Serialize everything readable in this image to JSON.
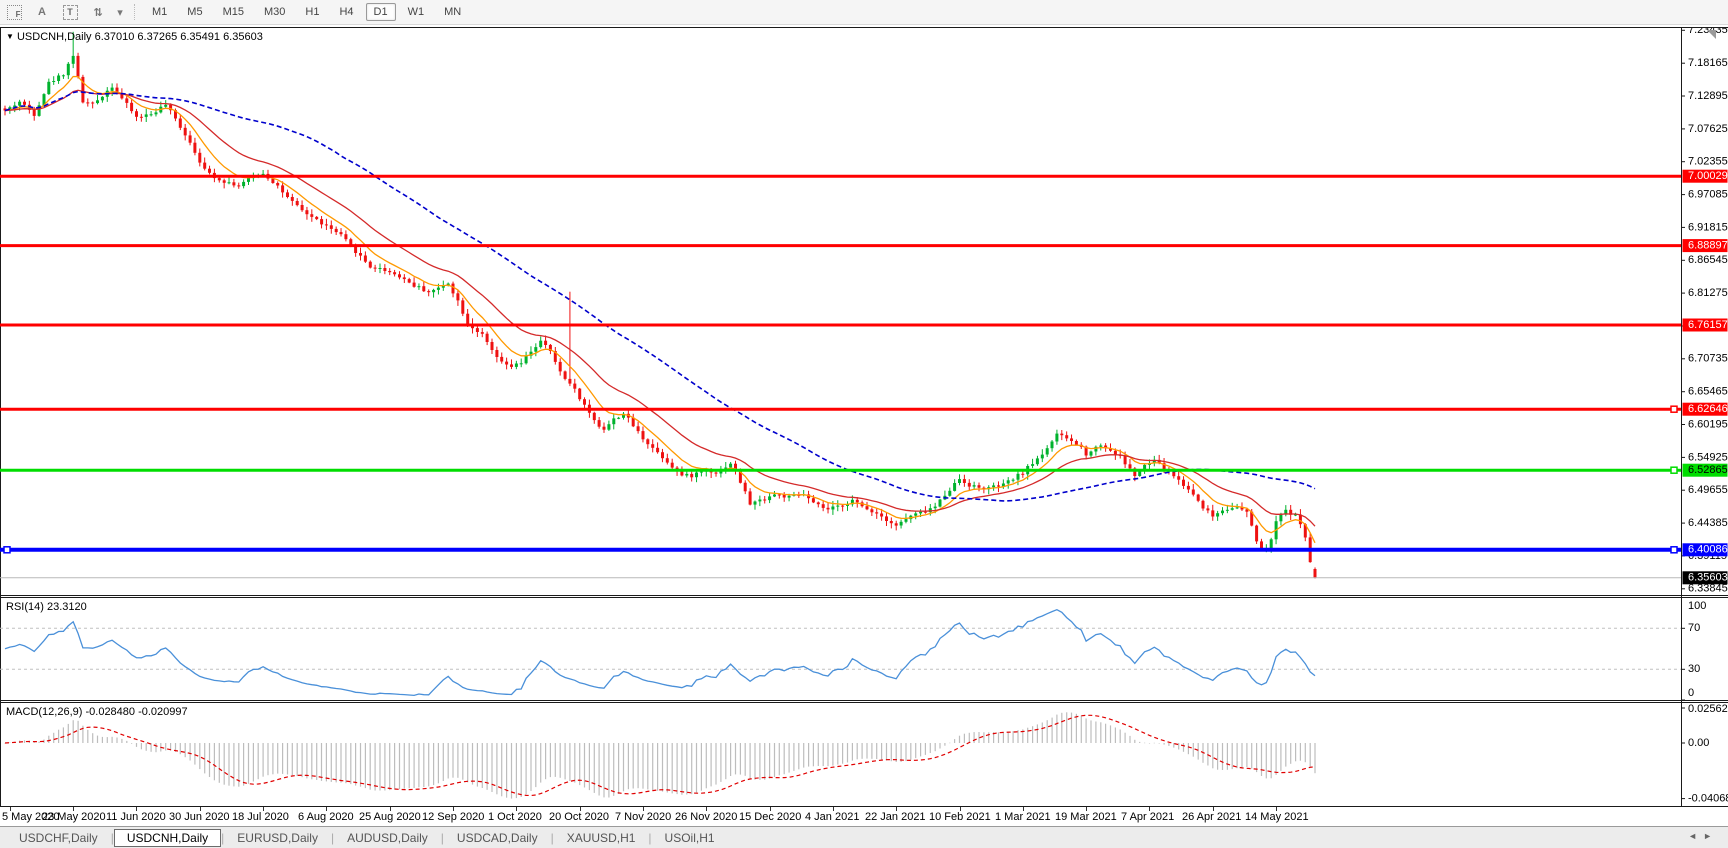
{
  "toolbar": {
    "icons": {
      "grid_f": "F",
      "letter_a": "A",
      "text_box": "T",
      "style_arrows": "⇅",
      "caret": "▾"
    },
    "timeframes": [
      "M1",
      "M5",
      "M15",
      "M30",
      "H1",
      "H4",
      "D1",
      "W1",
      "MN"
    ],
    "active_timeframe": "D1"
  },
  "title": {
    "dropdown_icon": "▼",
    "symbol": "USDCNH,Daily",
    "ohlc": "6.37010 6.37265 6.35491 6.35603"
  },
  "rsi": {
    "label": "RSI(14)",
    "value": "23.3120",
    "scale_labels": [
      "100",
      "70",
      "30",
      "0"
    ]
  },
  "macd": {
    "label": "MACD(12,26,9)",
    "values": "-0.028480 -0.020997",
    "scale_labels": [
      "0.025623",
      "0.00",
      "-0.040687"
    ]
  },
  "tabs": {
    "items": [
      "USDCHF,Daily",
      "USDCNH,Daily",
      "EURUSD,Daily",
      "AUDUSD,Daily",
      "USDCAD,Daily",
      "XAUUSD,H1",
      "USOil,H1"
    ],
    "active": "USDCNH,Daily",
    "scroll_left_icon": "◄",
    "scroll_right_icon": "►"
  },
  "chart_data": {
    "type": "candlestick",
    "symbol": "USDCNH",
    "timeframe": "Daily",
    "ohlc_current": {
      "open": 6.3701,
      "high": 6.37265,
      "low": 6.35491,
      "close": 6.35603
    },
    "price_axis_ticks": [
      7.23435,
      7.18165,
      7.12895,
      7.07625,
      7.02355,
      6.97085,
      6.91815,
      6.86545,
      6.81275,
      6.76005,
      6.70735,
      6.65465,
      6.60195,
      6.54925,
      6.49655,
      6.44385,
      6.39115,
      6.33845
    ],
    "price_range": {
      "top": 7.2397,
      "bottom": 6.3284
    },
    "n_candles": 270,
    "candle_up_color": "#00b22d",
    "candle_down_color": "#ee1111",
    "close_anchors": [
      [
        0,
        7.105
      ],
      [
        3,
        7.12
      ],
      [
        6,
        7.1
      ],
      [
        9,
        7.15
      ],
      [
        12,
        7.165
      ],
      [
        14,
        7.195
      ],
      [
        16,
        7.12
      ],
      [
        18,
        7.115
      ],
      [
        20,
        7.13
      ],
      [
        22,
        7.145
      ],
      [
        24,
        7.125
      ],
      [
        27,
        7.095
      ],
      [
        30,
        7.1
      ],
      [
        33,
        7.115
      ],
      [
        36,
        7.08
      ],
      [
        38,
        7.055
      ],
      [
        41,
        7.01
      ],
      [
        44,
        6.995
      ],
      [
        48,
        6.985
      ],
      [
        51,
        7.0
      ],
      [
        53,
        7.005
      ],
      [
        56,
        6.985
      ],
      [
        58,
        6.965
      ],
      [
        61,
        6.945
      ],
      [
        63,
        6.935
      ],
      [
        66,
        6.92
      ],
      [
        69,
        6.905
      ],
      [
        72,
        6.88
      ],
      [
        75,
        6.855
      ],
      [
        78,
        6.85
      ],
      [
        81,
        6.84
      ],
      [
        84,
        6.825
      ],
      [
        87,
        6.815
      ],
      [
        89,
        6.82
      ],
      [
        91,
        6.83
      ],
      [
        93,
        6.8
      ],
      [
        95,
        6.765
      ],
      [
        98,
        6.745
      ],
      [
        100,
        6.72
      ],
      [
        102,
        6.7
      ],
      [
        104,
        6.695
      ],
      [
        106,
        6.7
      ],
      [
        108,
        6.72
      ],
      [
        110,
        6.735
      ],
      [
        112,
        6.72
      ],
      [
        113,
        6.7
      ],
      [
        115,
        6.675
      ],
      [
        116,
        6.67
      ],
      [
        118,
        6.645
      ],
      [
        120,
        6.62
      ],
      [
        122,
        6.6
      ],
      [
        123,
        6.595
      ],
      [
        125,
        6.61
      ],
      [
        127,
        6.62
      ],
      [
        129,
        6.6
      ],
      [
        131,
        6.58
      ],
      [
        133,
        6.565
      ],
      [
        135,
        6.55
      ],
      [
        137,
        6.535
      ],
      [
        139,
        6.52
      ],
      [
        141,
        6.52
      ],
      [
        144,
        6.53
      ],
      [
        146,
        6.525
      ],
      [
        149,
        6.54
      ],
      [
        151,
        6.51
      ],
      [
        153,
        6.475
      ],
      [
        155,
        6.48
      ],
      [
        158,
        6.49
      ],
      [
        161,
        6.485
      ],
      [
        164,
        6.49
      ],
      [
        166,
        6.475
      ],
      [
        169,
        6.465
      ],
      [
        171,
        6.47
      ],
      [
        174,
        6.48
      ],
      [
        176,
        6.47
      ],
      [
        179,
        6.46
      ],
      [
        181,
        6.45
      ],
      [
        183,
        6.44
      ],
      [
        186,
        6.455
      ],
      [
        188,
        6.46
      ],
      [
        191,
        6.47
      ],
      [
        193,
        6.49
      ],
      [
        196,
        6.515
      ],
      [
        198,
        6.505
      ],
      [
        200,
        6.5
      ],
      [
        202,
        6.5
      ],
      [
        205,
        6.505
      ],
      [
        207,
        6.515
      ],
      [
        209,
        6.525
      ],
      [
        211,
        6.54
      ],
      [
        213,
        6.555
      ],
      [
        215,
        6.575
      ],
      [
        216,
        6.585
      ],
      [
        218,
        6.58
      ],
      [
        219,
        6.575
      ],
      [
        221,
        6.565
      ],
      [
        222,
        6.555
      ],
      [
        224,
        6.565
      ],
      [
        225,
        6.57
      ],
      [
        227,
        6.56
      ],
      [
        229,
        6.55
      ],
      [
        231,
        6.53
      ],
      [
        232,
        6.52
      ],
      [
        234,
        6.535
      ],
      [
        236,
        6.545
      ],
      [
        238,
        6.53
      ],
      [
        240,
        6.52
      ],
      [
        242,
        6.505
      ],
      [
        244,
        6.49
      ],
      [
        246,
        6.47
      ],
      [
        248,
        6.455
      ],
      [
        250,
        6.465
      ],
      [
        252,
        6.47
      ],
      [
        254,
        6.465
      ],
      [
        255,
        6.46
      ],
      [
        256,
        6.44
      ],
      [
        257,
        6.415
      ],
      [
        258,
        6.4
      ],
      [
        259,
        6.4
      ],
      [
        260,
        6.42
      ],
      [
        261,
        6.445
      ],
      [
        262,
        6.455
      ],
      [
        263,
        6.465
      ],
      [
        264,
        6.46
      ],
      [
        265,
        6.455
      ],
      [
        266,
        6.445
      ],
      [
        267,
        6.42
      ],
      [
        268,
        6.38
      ],
      [
        269,
        6.356
      ]
    ],
    "spikes": [
      {
        "i": 14,
        "high": 7.232
      },
      {
        "i": 116,
        "high": 6.815
      }
    ],
    "last_candle": {
      "open": 6.3701,
      "high": 6.37265,
      "low": 6.35491,
      "close": 6.35603
    },
    "moving_averages": [
      {
        "name": "fast",
        "period": 8,
        "color": "#ff9900",
        "style": "solid"
      },
      {
        "name": "medium",
        "period": 21,
        "color": "#d42a2a",
        "style": "solid"
      },
      {
        "name": "slow",
        "period": 55,
        "color": "#0000cc",
        "style": "dashed"
      }
    ],
    "levels": [
      {
        "price": 7.00029,
        "color": "#ff0000",
        "width": 3,
        "tag_fg": "#ffffff",
        "markers": "none"
      },
      {
        "price": 6.88897,
        "color": "#ff0000",
        "width": 3,
        "tag_fg": "#ffffff",
        "markers": "none"
      },
      {
        "price": 6.76157,
        "color": "#ff0000",
        "width": 3,
        "tag_fg": "#ffffff",
        "markers": "none"
      },
      {
        "price": 6.62646,
        "color": "#ff0000",
        "width": 3,
        "tag_fg": "#ffffff",
        "markers": "right"
      },
      {
        "price": 6.52865,
        "color": "#00dd00",
        "width": 3,
        "tag_fg": "#000000",
        "markers": "right"
      },
      {
        "price": 6.40086,
        "color": "#0000ff",
        "width": 4,
        "tag_fg": "#ffffff",
        "markers": "both"
      }
    ],
    "current_price": {
      "value": 6.35603,
      "label": "6.35603",
      "line_color": "#b9b9b9",
      "tag_bg": "#000000",
      "tag_fg": "#ffffff"
    },
    "rsi": {
      "period": 14,
      "current": 23.312,
      "levels": [
        70,
        30
      ],
      "range": [
        0,
        100
      ],
      "line_color": "#4a90d9"
    },
    "macd": {
      "fast": 12,
      "slow": 26,
      "signal": 9,
      "current_main": -0.02848,
      "current_signal": -0.020997,
      "scale_max": 0.025623,
      "scale_min": -0.040687,
      "bar_color": "#bdbdbd",
      "signal_color": "#e00000"
    },
    "dates": [
      "5 May 2020",
      "23 May 2020",
      "11 Jun 2020",
      "30 Jun 2020",
      "18 Jul 2020",
      "6 Aug 2020",
      "25 Aug 2020",
      "12 Sep 2020",
      "1 Oct 2020",
      "20 Oct 2020",
      "7 Nov 2020",
      "26 Nov 2020",
      "15 Dec 2020",
      "4 Jan 2021",
      "22 Jan 2021",
      "10 Feb 2021",
      "1 Mar 2021",
      "19 Mar 2021",
      "7 Apr 2021",
      "26 Apr 2021",
      "14 May 2021"
    ]
  }
}
